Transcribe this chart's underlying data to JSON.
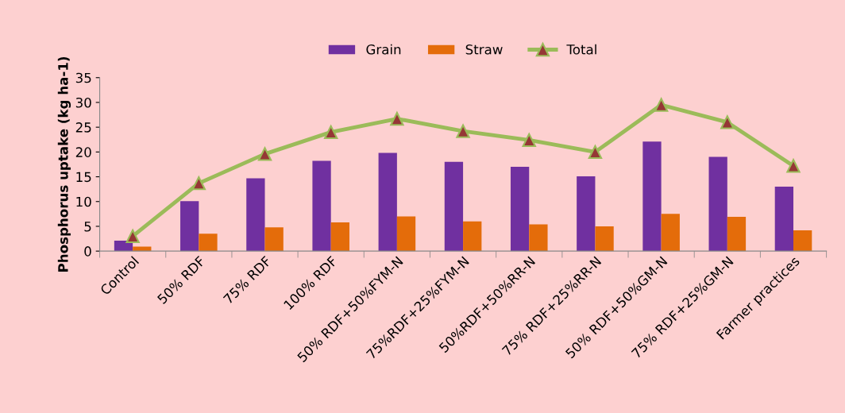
{
  "chart_data": {
    "type": "bar",
    "ylabel": "Phosphorus uptake (kg ha-1)",
    "categories": [
      "Control",
      "50% RDF",
      "75% RDF",
      "100% RDF",
      "50% RDF+50%FYM-N",
      "75%RDF+25%FYM-N",
      "50%RDF+50%RR-N",
      "75% RDF+25%RR-N",
      "50% RDF+50%GM-N",
      "75% RDF+25%GM-N",
      "Farmer practices"
    ],
    "series": [
      {
        "name": "Grain",
        "color": "#7030a0",
        "values": [
          2.1,
          10.1,
          14.7,
          18.2,
          19.8,
          18.0,
          17.0,
          15.1,
          22.1,
          19.0,
          13.0
        ]
      },
      {
        "name": "Straw",
        "color": "#e46c0a",
        "values": [
          0.9,
          3.5,
          4.8,
          5.8,
          7.0,
          6.0,
          5.4,
          5.0,
          7.5,
          6.9,
          4.2
        ]
      },
      {
        "name": "Total",
        "type": "line",
        "color": "#9bbb59",
        "marker": "triangle",
        "values": [
          3.0,
          13.7,
          19.6,
          24.0,
          26.7,
          24.2,
          22.4,
          20.0,
          29.5,
          26.0,
          17.2
        ]
      }
    ],
    "ylim": [
      0,
      35
    ],
    "yticks": [
      0,
      5,
      10,
      15,
      20,
      25,
      30,
      35
    ],
    "grid": false,
    "legend": "top"
  }
}
